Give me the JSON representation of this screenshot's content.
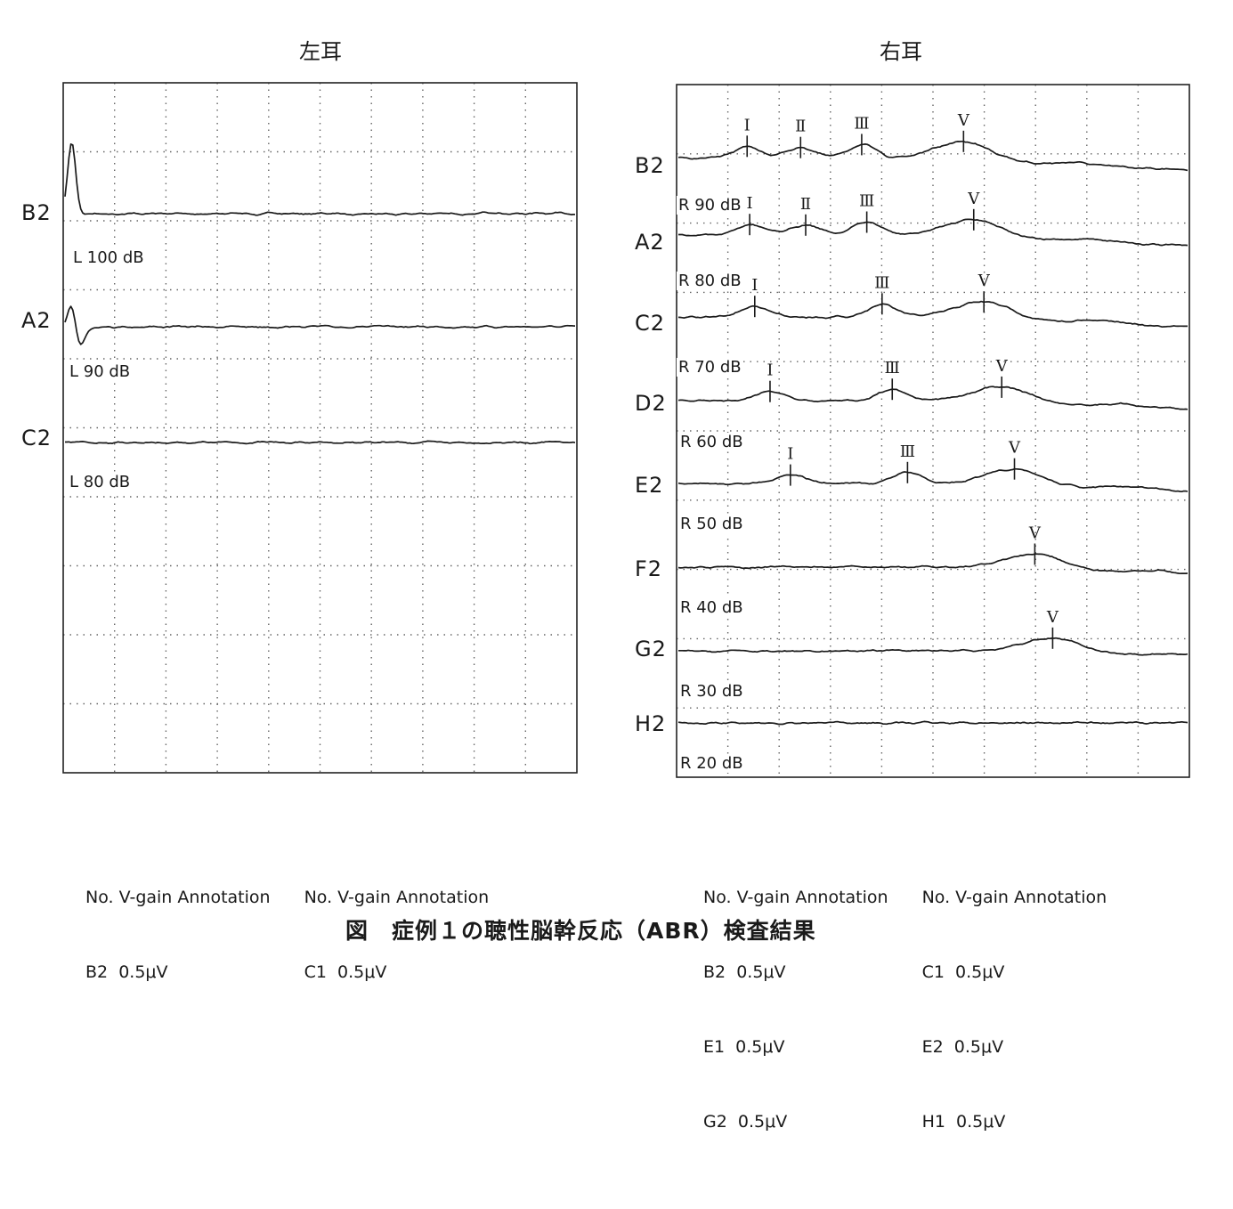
{
  "caption": "図　症例１の聴性脳幹反応（ABR）検査結果",
  "chart_data": [
    {
      "type": "line",
      "title": "左耳",
      "x_divisions": 10,
      "y_divisions": 10,
      "grid": true,
      "traces": [
        {
          "channel": "B2",
          "level": "L 100 dB",
          "stimulus_artifact": true,
          "waves": []
        },
        {
          "channel": "A2",
          "level": "L 90 dB",
          "stimulus_artifact": true,
          "waves": []
        },
        {
          "channel": "C2",
          "level": "L 80 dB",
          "stimulus_artifact": false,
          "waves": []
        }
      ],
      "legend_header": [
        "No. V-gain Annotation",
        "No. V-gain Annotation"
      ],
      "legend_rows": [
        [
          "B2  0.5μV",
          "C1  0.5μV"
        ]
      ]
    },
    {
      "type": "line",
      "title": "右耳",
      "x_divisions": 10,
      "y_divisions": 10,
      "grid": true,
      "traces": [
        {
          "channel": "B2",
          "level": "R 90 dB",
          "waves": [
            {
              "label": "Ⅰ",
              "t": 1.35
            },
            {
              "label": "Ⅱ",
              "t": 2.4
            },
            {
              "label": "Ⅲ",
              "t": 3.6
            },
            {
              "label": "Ⅴ",
              "t": 5.6
            }
          ]
        },
        {
          "channel": "A2",
          "level": "R 80 dB",
          "waves": [
            {
              "label": "Ⅰ",
              "t": 1.4
            },
            {
              "label": "Ⅱ",
              "t": 2.5
            },
            {
              "label": "Ⅲ",
              "t": 3.7
            },
            {
              "label": "Ⅴ",
              "t": 5.8
            }
          ]
        },
        {
          "channel": "C2",
          "level": "R 70 dB",
          "waves": [
            {
              "label": "Ⅰ",
              "t": 1.5
            },
            {
              "label": "Ⅲ",
              "t": 4.0
            },
            {
              "label": "Ⅴ",
              "t": 6.0
            }
          ]
        },
        {
          "channel": "D2",
          "level": "R 60 dB",
          "waves": [
            {
              "label": "Ⅰ",
              "t": 1.8
            },
            {
              "label": "Ⅲ",
              "t": 4.2
            },
            {
              "label": "Ⅴ",
              "t": 6.35
            }
          ]
        },
        {
          "channel": "E2",
          "level": "R 50 dB",
          "waves": [
            {
              "label": "Ⅰ",
              "t": 2.2
            },
            {
              "label": "Ⅲ",
              "t": 4.5
            },
            {
              "label": "Ⅴ",
              "t": 6.6
            }
          ]
        },
        {
          "channel": "F2",
          "level": "R 40 dB",
          "waves": [
            {
              "label": "Ⅴ",
              "t": 7.0
            }
          ]
        },
        {
          "channel": "G2",
          "level": "R 30 dB",
          "waves": [
            {
              "label": "Ⅴ",
              "t": 7.35
            }
          ]
        },
        {
          "channel": "H2",
          "level": "R 20 dB",
          "waves": []
        }
      ],
      "legend_header": [
        "No. V-gain Annotation",
        "No. V-gain Annotation"
      ],
      "legend_rows": [
        [
          "B2  0.5μV",
          "C1  0.5μV"
        ],
        [
          "E1  0.5μV",
          "E2  0.5μV"
        ],
        [
          "G2  0.5μV",
          "H1  0.5μV"
        ]
      ]
    }
  ]
}
